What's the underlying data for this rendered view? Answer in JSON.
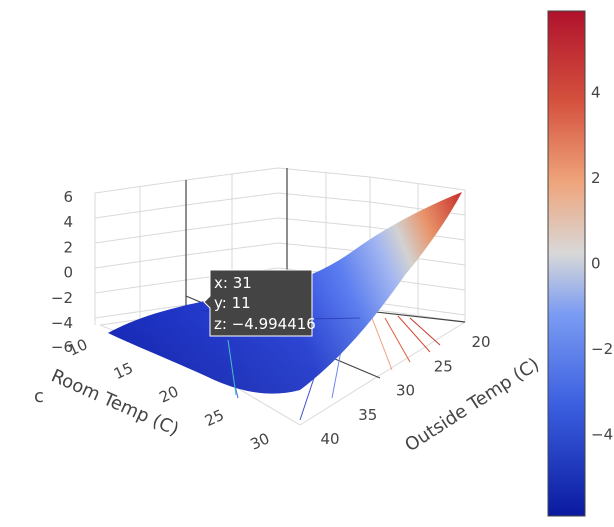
{
  "chart_data": {
    "type": "surface",
    "title": "",
    "colorscale": "coolwarm",
    "x_axis": {
      "title": "Outside Temp (C)",
      "ticks": [
        20,
        25,
        30,
        35,
        40
      ],
      "tick_labels": [
        "20",
        "25",
        "30",
        "35",
        "40"
      ],
      "range": [
        18,
        42
      ]
    },
    "y_axis": {
      "title": "Room Temp (C)",
      "ticks": [
        10,
        15,
        20,
        25,
        30
      ],
      "tick_labels": [
        "10",
        "15",
        "20",
        "25",
        "30"
      ],
      "range": [
        10,
        30
      ]
    },
    "z_axis": {
      "title": "",
      "ticks": [
        -4,
        -2,
        0,
        2,
        4,
        6
      ],
      "tick_labels": [
        "−4",
        "−2",
        "0",
        "2",
        "4",
        "6"
      ],
      "range": [
        -6,
        6
      ]
    },
    "colorbar": {
      "ticks": [
        -4,
        -2,
        0,
        2,
        4
      ],
      "tick_labels": [
        "−4",
        "−2",
        "0",
        "2",
        "4"
      ],
      "range": [
        -5.9,
        5.9
      ]
    },
    "surface_samples": {
      "x": [
        20,
        25,
        30,
        35,
        40
      ],
      "y": [
        10,
        15,
        20,
        25,
        30
      ],
      "z": [
        [
          -5.5,
          -5.0,
          -4.0,
          -2.5,
          -0.5
        ],
        [
          -5.5,
          -5.0,
          -3.6,
          -1.2,
          1.5
        ],
        [
          -5.6,
          -5.0,
          -3.0,
          0.3,
          3.5
        ],
        [
          -5.6,
          -4.9,
          -2.2,
          1.8,
          5.0
        ],
        [
          -5.7,
          -4.7,
          -1.5,
          2.8,
          5.8
        ]
      ]
    },
    "hover": {
      "x_label": "x: 31",
      "y_label": "y: 11",
      "z_label": "z: −4.994416"
    }
  }
}
